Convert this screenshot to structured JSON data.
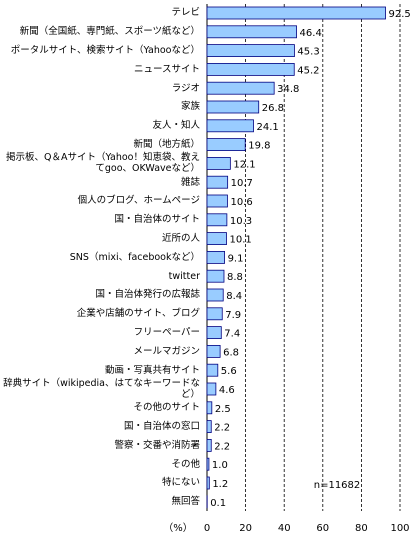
{
  "chart_data": {
    "type": "hbar",
    "categories": [
      "テレビ",
      "新聞（全国紙、専門紙、スポーツ紙など）",
      "ポータルサイト、検索サイト（Yahooなど）",
      "ニュースサイト",
      "ラジオ",
      "家族",
      "友人・知人",
      "新聞（地方紙）",
      "掲示板、Q＆Aサイト（Yahoo！知恵袋、教えてgoo、OKWaveなど）",
      "雑誌",
      "個人のブログ、ホームページ",
      "国・自治体のサイト",
      "近所の人",
      "SNS（mixi、facebookなど）",
      "twitter",
      "国・自治体発行の広報誌",
      "企業や店舗のサイト、ブログ",
      "フリーペーパー",
      "メールマガジン",
      "動画・写真共有サイト",
      "辞典サイト（wikipedia、はてなキーワードなど）",
      "その他のサイト",
      "国・自治体の窓口",
      "警察・交番や消防署",
      "その他",
      "特にない",
      "無回答"
    ],
    "values": [
      92.5,
      46.4,
      45.3,
      45.2,
      34.8,
      26.8,
      24.1,
      19.8,
      12.1,
      10.7,
      10.6,
      10.3,
      10.1,
      9.1,
      8.8,
      8.4,
      7.9,
      7.4,
      6.8,
      5.6,
      4.6,
      2.5,
      2.2,
      2.2,
      1.0,
      1.2,
      0.1
    ],
    "value_labels": [
      "92.5",
      "46.4",
      "45.3",
      "45.2",
      "34.8",
      "26.8",
      "24.1",
      "19.8",
      "12.1",
      "10.7",
      "10.6",
      "10.3",
      "10.1",
      "9.1",
      "8.8",
      "8.4",
      "7.9",
      "7.4",
      "6.8",
      "5.6",
      "4.6",
      "2.5",
      "2.2",
      "2.2",
      "1.0",
      "1.2",
      "0.1"
    ],
    "color": "#99ccff",
    "xlabel": "（%）",
    "xlim": [
      0,
      100
    ],
    "xticks": [
      0,
      20,
      40,
      60,
      80,
      100
    ],
    "grid": true,
    "annotation": "n=11682"
  }
}
